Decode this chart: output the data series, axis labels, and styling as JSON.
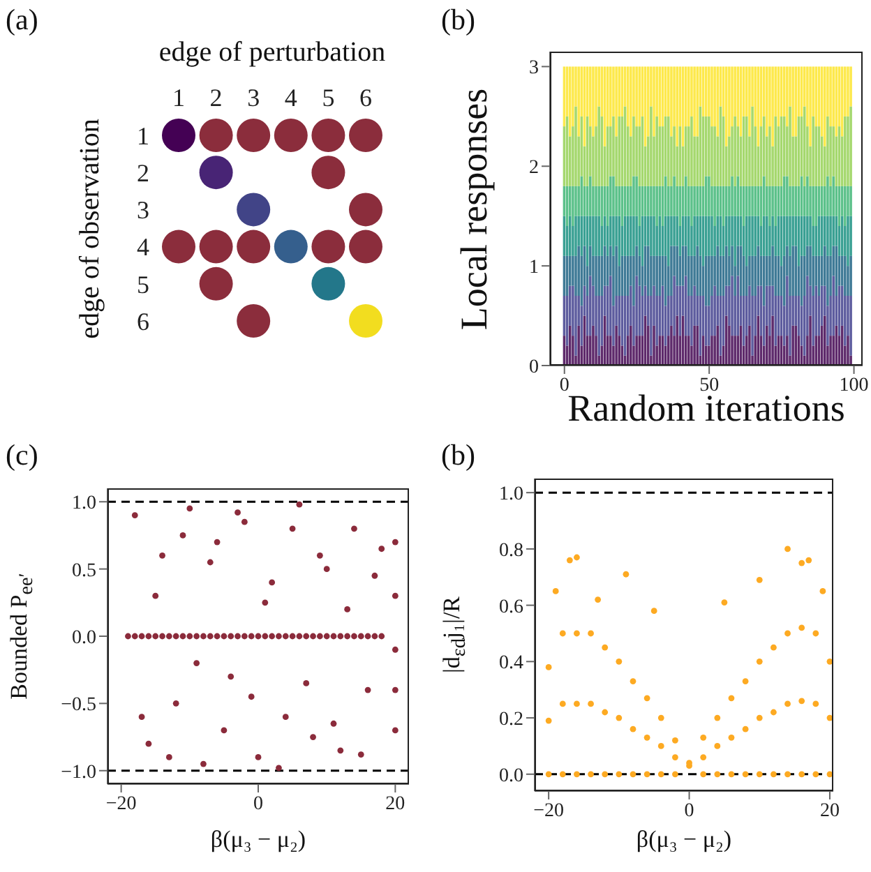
{
  "chart_data": [
    {
      "type": "scatter",
      "title": "(a)",
      "xlabel": "edge of perturbation",
      "ylabel": "edge of observation",
      "marker": "circle",
      "x": [
        1,
        2,
        3,
        4,
        5,
        6,
        2,
        5,
        3,
        6,
        1,
        2,
        3,
        4,
        5,
        6,
        2,
        5,
        3,
        6
      ],
      "values": [
        1,
        1,
        1,
        1,
        1,
        1,
        2,
        2,
        3,
        3,
        4,
        4,
        4,
        4,
        4,
        4,
        5,
        5,
        6,
        6
      ],
      "colors": [
        "#440154",
        "#8b2d3c",
        "#8b2d3c",
        "#8b2d3c",
        "#8b2d3c",
        "#8b2d3c",
        "#482475",
        "#8b2d3c",
        "#414487",
        "#8b2d3c",
        "#8b2d3c",
        "#8b2d3c",
        "#8b2d3c",
        "#355f8d",
        "#8b2d3c",
        "#8b2d3c",
        "#8b2d3c",
        "#23778a",
        "#8b2d3c",
        "#f2dd1f"
      ],
      "xlim": [
        1,
        6
      ],
      "ylim": [
        6,
        1
      ],
      "xticks": [
        1,
        2,
        3,
        4,
        5,
        6
      ],
      "yticks": [
        1,
        2,
        3,
        4,
        5,
        6
      ]
    },
    {
      "type": "bar",
      "stacked": true,
      "title": "(b)",
      "xlabel": "Random iterations",
      "ylabel": "Local responses",
      "x": [
        0,
        1,
        2,
        3,
        4,
        5,
        6,
        7,
        8,
        9,
        10,
        11,
        12,
        13,
        14,
        15,
        16,
        17,
        18,
        19,
        20,
        21,
        22,
        23,
        24,
        25,
        26,
        27,
        28,
        29,
        30,
        31,
        32,
        33,
        34,
        35,
        36,
        37,
        38,
        39,
        40,
        41,
        42,
        43,
        44,
        45,
        46,
        47,
        48,
        49,
        50,
        51,
        52,
        53,
        54,
        55,
        56,
        57,
        58,
        59,
        60,
        61,
        62,
        63,
        64,
        65,
        66,
        67,
        68,
        69,
        70,
        71,
        72,
        73,
        74,
        75,
        76,
        77,
        78,
        79,
        80,
        81,
        82,
        83,
        84,
        85,
        86,
        87,
        88,
        89,
        90,
        91,
        92,
        93,
        94,
        95,
        96,
        97,
        98,
        99
      ],
      "series": [
        {
          "color": "#5e2a6b",
          "values": [
            0.3,
            0.2,
            0.4,
            0.3,
            0.1,
            0.4,
            0.2,
            0.5,
            0.3,
            0.3,
            0.4,
            0.3,
            0.1,
            0.2,
            0.5,
            0.3,
            0.3,
            0.2,
            0.4,
            0.3,
            0.2,
            0.1,
            0.3,
            0.4,
            0.2,
            0.3,
            0.3,
            0.3,
            0.5,
            0.4,
            0.1,
            0.4,
            0.2,
            0.3,
            0.3,
            0.2,
            0.3,
            0.4,
            0.3,
            0.5,
            0.3,
            0.5,
            0.3,
            0.3,
            0.2,
            0.4,
            0.4,
            0.1,
            0.3,
            0.2,
            0.2,
            0.3,
            0.3,
            0.4,
            0.1,
            0.2,
            0.5,
            0.4,
            0.3,
            0.3,
            0.3,
            0.4,
            0.2,
            0.3,
            0.4,
            0.1,
            0.3,
            0.5,
            0.3,
            0.2,
            0.4,
            0.3,
            0.5,
            0.2,
            0.3,
            0.3,
            0.2,
            0.3,
            0.1,
            0.4,
            0.4,
            0.3,
            0.2,
            0.1,
            0.3,
            0.5,
            0.2,
            0.3,
            0.3,
            0.4,
            0.5,
            0.2,
            0.3,
            0.3,
            0.4,
            0.3,
            0.4,
            0.2,
            0.3,
            0.1
          ]
        },
        {
          "color": "#5d5c9e",
          "values": [
            0.4,
            0.5,
            0.4,
            0.5,
            0.6,
            0.3,
            0.4,
            0.3,
            0.4,
            0.6,
            0.4,
            0.4,
            0.6,
            0.5,
            0.3,
            0.5,
            0.6,
            0.4,
            0.3,
            0.4,
            0.5,
            0.6,
            0.4,
            0.4,
            0.4,
            0.6,
            0.5,
            0.4,
            0.3,
            0.3,
            0.6,
            0.4,
            0.5,
            0.4,
            0.5,
            0.4,
            0.4,
            0.3,
            0.6,
            0.3,
            0.5,
            0.3,
            0.6,
            0.4,
            0.5,
            0.4,
            0.3,
            0.6,
            0.4,
            0.4,
            0.4,
            0.4,
            0.5,
            0.3,
            0.6,
            0.5,
            0.3,
            0.4,
            0.6,
            0.4,
            0.6,
            0.3,
            0.5,
            0.4,
            0.4,
            0.6,
            0.4,
            0.3,
            0.5,
            0.4,
            0.4,
            0.5,
            0.3,
            0.5,
            0.4,
            0.4,
            0.4,
            0.6,
            0.6,
            0.3,
            0.3,
            0.4,
            0.4,
            0.6,
            0.6,
            0.3,
            0.5,
            0.5,
            0.4,
            0.4,
            0.3,
            0.4,
            0.4,
            0.6,
            0.3,
            0.5,
            0.4,
            0.5,
            0.4,
            0.6
          ]
        },
        {
          "color": "#3f7a96",
          "values": [
            0.4,
            0.4,
            0.3,
            0.3,
            0.4,
            0.5,
            0.5,
            0.4,
            0.3,
            0.3,
            0.3,
            0.4,
            0.4,
            0.4,
            0.4,
            0.3,
            0.3,
            0.5,
            0.5,
            0.3,
            0.4,
            0.4,
            0.4,
            0.3,
            0.5,
            0.3,
            0.3,
            0.3,
            0.4,
            0.5,
            0.4,
            0.3,
            0.4,
            0.4,
            0.3,
            0.5,
            0.3,
            0.5,
            0.3,
            0.4,
            0.3,
            0.4,
            0.3,
            0.4,
            0.4,
            0.3,
            0.5,
            0.4,
            0.3,
            0.5,
            0.5,
            0.4,
            0.3,
            0.5,
            0.4,
            0.4,
            0.4,
            0.3,
            0.3,
            0.3,
            0.3,
            0.5,
            0.4,
            0.3,
            0.3,
            0.4,
            0.4,
            0.4,
            0.3,
            0.5,
            0.3,
            0.3,
            0.4,
            0.4,
            0.4,
            0.3,
            0.5,
            0.3,
            0.4,
            0.5,
            0.5,
            0.3,
            0.5,
            0.4,
            0.3,
            0.4,
            0.4,
            0.3,
            0.4,
            0.3,
            0.4,
            0.5,
            0.4,
            0.3,
            0.5,
            0.3,
            0.3,
            0.4,
            0.3,
            0.4
          ]
        },
        {
          "color": "#3aa093",
          "values": [
            0.4,
            0.3,
            0.4,
            0.3,
            0.4,
            0.3,
            0.4,
            0.3,
            0.5,
            0.3,
            0.4,
            0.4,
            0.4,
            0.3,
            0.3,
            0.3,
            0.3,
            0.4,
            0.3,
            0.5,
            0.3,
            0.4,
            0.4,
            0.4,
            0.4,
            0.3,
            0.3,
            0.5,
            0.3,
            0.3,
            0.4,
            0.4,
            0.3,
            0.4,
            0.3,
            0.4,
            0.5,
            0.3,
            0.3,
            0.3,
            0.3,
            0.3,
            0.3,
            0.4,
            0.3,
            0.4,
            0.3,
            0.4,
            0.5,
            0.4,
            0.4,
            0.4,
            0.3,
            0.3,
            0.4,
            0.3,
            0.3,
            0.4,
            0.3,
            0.5,
            0.3,
            0.3,
            0.3,
            0.5,
            0.4,
            0.4,
            0.4,
            0.3,
            0.3,
            0.4,
            0.4,
            0.3,
            0.3,
            0.3,
            0.4,
            0.5,
            0.4,
            0.3,
            0.4,
            0.3,
            0.3,
            0.5,
            0.4,
            0.4,
            0.3,
            0.3,
            0.3,
            0.3,
            0.4,
            0.4,
            0.3,
            0.4,
            0.4,
            0.3,
            0.3,
            0.3,
            0.4,
            0.3,
            0.5,
            0.4
          ]
        },
        {
          "color": "#5cc18a",
          "values": [
            0.3,
            0.4,
            0.3,
            0.4,
            0.3,
            0.3,
            0.4,
            0.3,
            0.3,
            0.4,
            0.3,
            0.3,
            0.3,
            0.4,
            0.3,
            0.4,
            0.4,
            0.4,
            0.3,
            0.3,
            0.4,
            0.3,
            0.3,
            0.3,
            0.4,
            0.4,
            0.4,
            0.3,
            0.3,
            0.3,
            0.3,
            0.3,
            0.4,
            0.3,
            0.4,
            0.4,
            0.3,
            0.3,
            0.4,
            0.3,
            0.4,
            0.3,
            0.4,
            0.3,
            0.4,
            0.3,
            0.3,
            0.3,
            0.3,
            0.4,
            0.4,
            0.3,
            0.4,
            0.3,
            0.3,
            0.4,
            0.3,
            0.3,
            0.4,
            0.3,
            0.4,
            0.3,
            0.4,
            0.3,
            0.3,
            0.3,
            0.3,
            0.3,
            0.4,
            0.4,
            0.3,
            0.4,
            0.3,
            0.4,
            0.3,
            0.3,
            0.4,
            0.4,
            0.3,
            0.3,
            0.3,
            0.3,
            0.4,
            0.3,
            0.4,
            0.3,
            0.4,
            0.4,
            0.3,
            0.3,
            0.3,
            0.4,
            0.3,
            0.4,
            0.3,
            0.4,
            0.3,
            0.4,
            0.3,
            0.3
          ]
        },
        {
          "color": "#a5d86e",
          "values": [
            0.6,
            0.7,
            0.5,
            0.6,
            0.8,
            0.5,
            0.6,
            0.4,
            0.7,
            0.5,
            0.5,
            0.6,
            0.8,
            0.7,
            0.4,
            0.6,
            0.5,
            0.6,
            0.5,
            0.7,
            0.7,
            0.8,
            0.6,
            0.5,
            0.6,
            0.5,
            0.6,
            0.7,
            0.4,
            0.5,
            0.8,
            0.5,
            0.7,
            0.6,
            0.6,
            0.6,
            0.7,
            0.5,
            0.5,
            0.4,
            0.6,
            0.4,
            0.5,
            0.6,
            0.7,
            0.5,
            0.5,
            0.8,
            0.7,
            0.6,
            0.6,
            0.6,
            0.6,
            0.5,
            0.8,
            0.7,
            0.4,
            0.5,
            0.5,
            0.7,
            0.5,
            0.5,
            0.7,
            0.7,
            0.5,
            0.8,
            0.6,
            0.4,
            0.6,
            0.6,
            0.5,
            0.6,
            0.4,
            0.7,
            0.6,
            0.7,
            0.6,
            0.5,
            0.8,
            0.5,
            0.5,
            0.7,
            0.6,
            0.8,
            0.5,
            0.4,
            0.7,
            0.6,
            0.6,
            0.5,
            0.4,
            0.6,
            0.6,
            0.5,
            0.5,
            0.6,
            0.5,
            0.7,
            0.7,
            0.8
          ]
        },
        {
          "color": "#fde94c",
          "values": [
            0.6,
            0.5,
            0.7,
            0.6,
            0.4,
            0.7,
            0.5,
            0.8,
            0.5,
            0.6,
            0.7,
            0.6,
            0.4,
            0.5,
            0.8,
            0.6,
            0.6,
            0.5,
            0.7,
            0.5,
            0.5,
            0.4,
            0.6,
            0.7,
            0.5,
            0.6,
            0.6,
            0.5,
            0.8,
            0.7,
            0.4,
            0.7,
            0.5,
            0.6,
            0.6,
            0.5,
            0.5,
            0.7,
            0.6,
            0.8,
            0.6,
            0.8,
            0.6,
            0.6,
            0.5,
            0.7,
            0.7,
            0.4,
            0.5,
            0.5,
            0.5,
            0.6,
            0.6,
            0.7,
            0.4,
            0.5,
            0.8,
            0.7,
            0.6,
            0.5,
            0.6,
            0.7,
            0.5,
            0.5,
            0.7,
            0.4,
            0.6,
            0.8,
            0.6,
            0.5,
            0.7,
            0.6,
            0.8,
            0.5,
            0.6,
            0.5,
            0.5,
            0.6,
            0.4,
            0.7,
            0.7,
            0.5,
            0.5,
            0.4,
            0.6,
            0.8,
            0.5,
            0.6,
            0.6,
            0.7,
            0.8,
            0.5,
            0.6,
            0.6,
            0.7,
            0.6,
            0.7,
            0.5,
            0.5,
            0.4
          ]
        }
      ],
      "xlim": [
        -5,
        103
      ],
      "xticks": [
        0,
        50,
        100
      ],
      "ylim": [
        0,
        3.15
      ],
      "yticks": [
        0,
        1,
        2,
        3
      ]
    },
    {
      "type": "scatter",
      "title": "(c)",
      "xlabel": "β(μ₃ − μ₂)",
      "ylabel": "Bounded P$_{ee′}$",
      "marker": "circle",
      "color": "#8b2b3b",
      "x": [
        -19,
        -18,
        -17,
        -16,
        -15,
        -14,
        -13,
        -12,
        -11,
        -10,
        -9,
        -8,
        -7,
        -6,
        -5,
        -4,
        -3,
        -2,
        -1,
        0,
        1,
        2,
        3,
        4,
        5,
        6,
        7,
        8,
        9,
        10,
        11,
        12,
        13,
        14,
        15,
        16,
        17,
        18,
        -18,
        -16,
        -14,
        -12,
        -10,
        -8,
        -6,
        -4,
        -2,
        0,
        2,
        4,
        6,
        8,
        10,
        12,
        14,
        16,
        18,
        -17,
        -15,
        -13,
        -11,
        -9,
        -7,
        -5,
        -3,
        -1,
        1,
        3,
        5,
        7,
        9,
        11,
        13,
        15,
        17,
        20,
        20,
        20,
        20,
        20
      ],
      "values": [
        0,
        0,
        0,
        0,
        0,
        0,
        0,
        0,
        0,
        0,
        0,
        0,
        0,
        0,
        0,
        0,
        0,
        0,
        0,
        0,
        0,
        0,
        0,
        0,
        0,
        0,
        0,
        0,
        0,
        0,
        0,
        0,
        0,
        0,
        0,
        0,
        0,
        0,
        0.9,
        -0.8,
        0.6,
        -0.5,
        0.95,
        -0.95,
        0.7,
        -0.3,
        0.85,
        -0.9,
        0.4,
        -0.6,
        0.98,
        -0.75,
        0.5,
        -0.85,
        0.8,
        -0.4,
        0.65,
        -0.6,
        0.3,
        -0.9,
        0.75,
        -0.2,
        0.55,
        -0.7,
        0.92,
        -0.45,
        0.25,
        -0.98,
        0.8,
        -0.35,
        0.6,
        -0.65,
        0.2,
        -0.88,
        0.45,
        0.7,
        0.3,
        -0.1,
        -0.4,
        -0.7
      ],
      "xlim": [
        -22,
        22
      ],
      "xticks": [
        {
          "value": -20,
          "label": "−20"
        },
        0,
        20
      ],
      "ylim": [
        -1.1,
        1.1
      ],
      "yticks": [
        {
          "value": -1,
          "label": "−1.0"
        },
        {
          "value": -0.5,
          "label": "−0.5"
        },
        {
          "value": 0,
          "label": "0.0"
        },
        0.5,
        {
          "value": 1,
          "label": "1.0"
        }
      ],
      "ref_lines": [
        {
          "axis": "y",
          "value": 1,
          "color": "#000000",
          "line_style": "dashed"
        },
        {
          "axis": "y",
          "value": -1,
          "color": "#000000",
          "line_style": "dashed"
        }
      ]
    },
    {
      "type": "scatter",
      "title": "(b)",
      "xlabel": "β(μ₃ − μ₂)",
      "ylabel": "|d$_{εd}$j₁|/R",
      "marker": "circle",
      "color": "#fdaa22",
      "x": [
        -20,
        -18,
        -16,
        -14,
        -12,
        -10,
        -8,
        -6,
        -4,
        -2,
        0,
        2,
        4,
        6,
        8,
        10,
        12,
        14,
        16,
        18,
        20,
        -20,
        -18,
        -16,
        -14,
        -12,
        -10,
        -8,
        -6,
        -4,
        -2,
        0,
        2,
        4,
        6,
        8,
        10,
        12,
        14,
        16,
        18,
        20,
        -20,
        -18,
        -16,
        -14,
        -12,
        -10,
        -8,
        -6,
        -4,
        -2,
        2,
        4,
        6,
        8,
        10,
        12,
        14,
        16,
        18,
        20,
        -17,
        -16,
        -13,
        -9,
        -5,
        5,
        10,
        14,
        16,
        17,
        19,
        -19
      ],
      "values": [
        0,
        0,
        0,
        0,
        0,
        0,
        0,
        0,
        0,
        0,
        0.03,
        0,
        0,
        0,
        0,
        0,
        0,
        0,
        0,
        0,
        0,
        0.38,
        0.5,
        0.5,
        0.5,
        0.45,
        0.4,
        0.33,
        0.27,
        0.2,
        0.12,
        0.04,
        0.13,
        0.2,
        0.27,
        0.33,
        0.4,
        0.45,
        0.5,
        0.52,
        0.5,
        0.4,
        0.19,
        0.25,
        0.25,
        0.25,
        0.22,
        0.2,
        0.16,
        0.13,
        0.1,
        0.06,
        0.06,
        0.1,
        0.13,
        0.16,
        0.2,
        0.22,
        0.25,
        0.26,
        0.25,
        0.2,
        0.76,
        0.77,
        0.62,
        0.71,
        0.58,
        0.61,
        0.69,
        0.8,
        0.75,
        0.76,
        0.65,
        0.65
      ],
      "xlim": [
        -22,
        20.5
      ],
      "xticks": [
        {
          "value": -20,
          "label": "−20"
        },
        0,
        20
      ],
      "ylim": [
        -0.06,
        1.05
      ],
      "yticks": [
        {
          "value": 0,
          "label": "0.0"
        },
        0.2,
        0.4,
        0.6,
        0.8,
        {
          "value": 1,
          "label": "1.0"
        }
      ],
      "ref_lines": [
        {
          "axis": "y",
          "value": 1,
          "color": "#000000",
          "line_style": "dashed"
        },
        {
          "axis": "y",
          "value": 0,
          "color": "#000000",
          "line_style": "dashed"
        }
      ]
    }
  ]
}
